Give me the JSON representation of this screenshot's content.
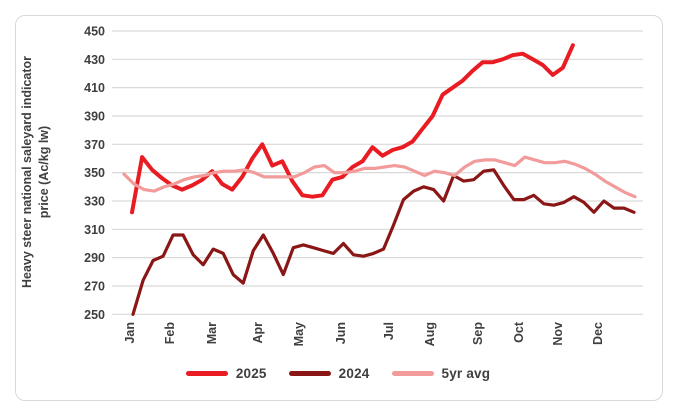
{
  "chart_data": {
    "type": "line",
    "title": "",
    "xlabel": "",
    "ylabel": "Heavy steer national saleyard indicator price (Ac/kg lw)",
    "ylabel_lines": [
      "Heavy steer national saleyard indicator",
      "price (Ac/kg lw)"
    ],
    "ylim": [
      250,
      450
    ],
    "y_tick_step": 20,
    "y_ticks": [
      450,
      430,
      410,
      390,
      370,
      350,
      330,
      310,
      290,
      270,
      250
    ],
    "categories": [
      "Jan",
      "Feb",
      "Mar",
      "Apr",
      "May",
      "Jun",
      "Jul",
      "Aug",
      "Sep",
      "Oct",
      "Nov",
      "Dec"
    ],
    "grid": "horizontal-only",
    "grid_color": "#D9D9D9",
    "text_color": "#3F3F3F",
    "legend_position": "bottom",
    "x_unit": "week-of-year",
    "weeks_per_year": 53,
    "series": [
      {
        "name": "2025",
        "color": "#EA1C23",
        "line_width": 4,
        "start_week": 2,
        "values": [
          322,
          361,
          352,
          346,
          341,
          338,
          341,
          345,
          351,
          342,
          338,
          347,
          360,
          370,
          355,
          358,
          344,
          334,
          333,
          334,
          345,
          347,
          354,
          358,
          368,
          362,
          366,
          368,
          372,
          381,
          390,
          405,
          410,
          415,
          422,
          428,
          428,
          430,
          433,
          434,
          430,
          426,
          419,
          424,
          440
        ]
      },
      {
        "name": "2024",
        "color": "#8B1616",
        "line_width": 3.2,
        "start_week": 2.1,
        "values": [
          250,
          274,
          288,
          291,
          306,
          306,
          292,
          285,
          296,
          293,
          278,
          272,
          295,
          306,
          293,
          278,
          297,
          299,
          297,
          295,
          293,
          300,
          292,
          291,
          293,
          296,
          313,
          331,
          337,
          340,
          338,
          330,
          348,
          344,
          345,
          351,
          352,
          341,
          331,
          331,
          334,
          328,
          327,
          329,
          333,
          329,
          322,
          330,
          325,
          325,
          322
        ]
      },
      {
        "name": "5yr avg",
        "color": "#F29B9B",
        "line_width": 3.2,
        "start_week": 1.2,
        "values": [
          349,
          342,
          338,
          337,
          340,
          342,
          345,
          347,
          348,
          350,
          351,
          351,
          352,
          350,
          347,
          347,
          347,
          347,
          350,
          354,
          355,
          350,
          350,
          351,
          353,
          353,
          354,
          355,
          354,
          351,
          348,
          351,
          350,
          348,
          354,
          358,
          359,
          359,
          357,
          355,
          361,
          359,
          357,
          357,
          358,
          356,
          353,
          349,
          344,
          340,
          336,
          333
        ]
      }
    ]
  }
}
